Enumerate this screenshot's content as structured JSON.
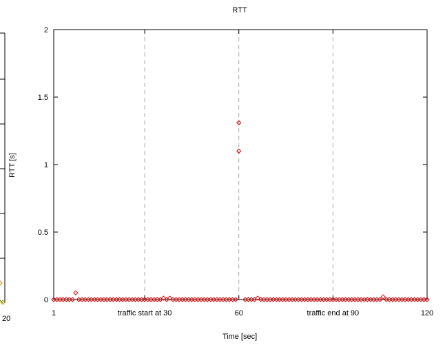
{
  "chart_data": {
    "type": "scatter",
    "title": "RTT",
    "xlabel": "Time [sec]",
    "ylabel": "RTT [s]",
    "xlim": [
      1,
      120
    ],
    "ylim": [
      0,
      2
    ],
    "x_ticks": [
      {
        "value": 1,
        "label": "1"
      },
      {
        "value": 30,
        "label": "traffic start at 30"
      },
      {
        "value": 60,
        "label": "60"
      },
      {
        "value": 90,
        "label": "traffic end at 90"
      },
      {
        "value": 120,
        "label": "120"
      }
    ],
    "y_ticks": [
      {
        "value": 0,
        "label": "0"
      },
      {
        "value": 0.5,
        "label": "0.5"
      },
      {
        "value": 1,
        "label": "1"
      },
      {
        "value": 1.5,
        "label": "1.5"
      },
      {
        "value": 2,
        "label": "2"
      }
    ],
    "vlines": [
      30,
      60,
      90
    ],
    "grid": false,
    "series": [
      {
        "color": "#dd0000",
        "marker": "diamond",
        "points": [
          [
            1,
            0
          ],
          [
            2,
            0
          ],
          [
            3,
            0
          ],
          [
            4,
            0
          ],
          [
            5,
            0
          ],
          [
            6,
            0
          ],
          [
            7,
            0
          ],
          [
            8,
            0.05
          ],
          [
            9,
            0
          ],
          [
            10,
            0
          ],
          [
            11,
            0
          ],
          [
            12,
            0
          ],
          [
            13,
            0
          ],
          [
            14,
            0
          ],
          [
            15,
            0
          ],
          [
            16,
            0
          ],
          [
            17,
            0
          ],
          [
            18,
            0
          ],
          [
            19,
            0
          ],
          [
            20,
            0
          ],
          [
            21,
            0
          ],
          [
            22,
            0
          ],
          [
            23,
            0
          ],
          [
            24,
            0
          ],
          [
            25,
            0
          ],
          [
            26,
            0
          ],
          [
            27,
            0
          ],
          [
            28,
            0
          ],
          [
            29,
            0
          ],
          [
            30,
            0
          ],
          [
            31,
            0
          ],
          [
            32,
            0
          ],
          [
            33,
            0
          ],
          [
            34,
            0
          ],
          [
            35,
            0
          ],
          [
            36,
            0.01
          ],
          [
            37,
            0
          ],
          [
            38,
            0.01
          ],
          [
            39,
            0
          ],
          [
            40,
            0
          ],
          [
            41,
            0
          ],
          [
            42,
            0
          ],
          [
            43,
            0
          ],
          [
            44,
            0
          ],
          [
            45,
            0
          ],
          [
            46,
            0
          ],
          [
            47,
            0
          ],
          [
            48,
            0
          ],
          [
            49,
            0
          ],
          [
            50,
            0
          ],
          [
            51,
            0
          ],
          [
            52,
            0
          ],
          [
            53,
            0
          ],
          [
            54,
            0
          ],
          [
            55,
            0
          ],
          [
            56,
            0
          ],
          [
            57,
            0
          ],
          [
            58,
            0
          ],
          [
            59,
            0
          ],
          [
            60,
            1.31
          ],
          [
            60,
            1.1
          ],
          [
            62,
            0
          ],
          [
            63,
            0
          ],
          [
            64,
            0
          ],
          [
            65,
            0
          ],
          [
            66,
            0.01
          ],
          [
            67,
            0
          ],
          [
            68,
            0
          ],
          [
            69,
            0
          ],
          [
            70,
            0
          ],
          [
            71,
            0
          ],
          [
            72,
            0
          ],
          [
            73,
            0
          ],
          [
            74,
            0
          ],
          [
            75,
            0
          ],
          [
            76,
            0
          ],
          [
            77,
            0
          ],
          [
            78,
            0
          ],
          [
            79,
            0
          ],
          [
            80,
            0
          ],
          [
            81,
            0
          ],
          [
            82,
            0
          ],
          [
            83,
            0
          ],
          [
            84,
            0
          ],
          [
            85,
            0
          ],
          [
            86,
            0
          ],
          [
            87,
            0
          ],
          [
            88,
            0
          ],
          [
            89,
            0
          ],
          [
            90,
            0
          ],
          [
            91,
            0
          ],
          [
            92,
            0
          ],
          [
            93,
            0
          ],
          [
            94,
            0
          ],
          [
            95,
            0
          ],
          [
            96,
            0
          ],
          [
            97,
            0
          ],
          [
            98,
            0
          ],
          [
            99,
            0
          ],
          [
            100,
            0
          ],
          [
            101,
            0
          ],
          [
            102,
            0
          ],
          [
            103,
            0
          ],
          [
            104,
            0
          ],
          [
            105,
            0
          ],
          [
            106,
            0.02
          ],
          [
            107,
            0
          ],
          [
            108,
            0
          ],
          [
            109,
            0
          ],
          [
            110,
            0
          ],
          [
            111,
            0
          ],
          [
            112,
            0
          ],
          [
            113,
            0
          ],
          [
            114,
            0
          ],
          [
            115,
            0
          ],
          [
            116,
            0
          ],
          [
            117,
            0
          ],
          [
            118,
            0
          ],
          [
            119,
            0
          ],
          [
            120,
            0
          ]
        ]
      }
    ]
  },
  "left_fragment": {
    "tick_label": "20",
    "line_color": "#00aa00",
    "marker_color": "#cc8800"
  }
}
